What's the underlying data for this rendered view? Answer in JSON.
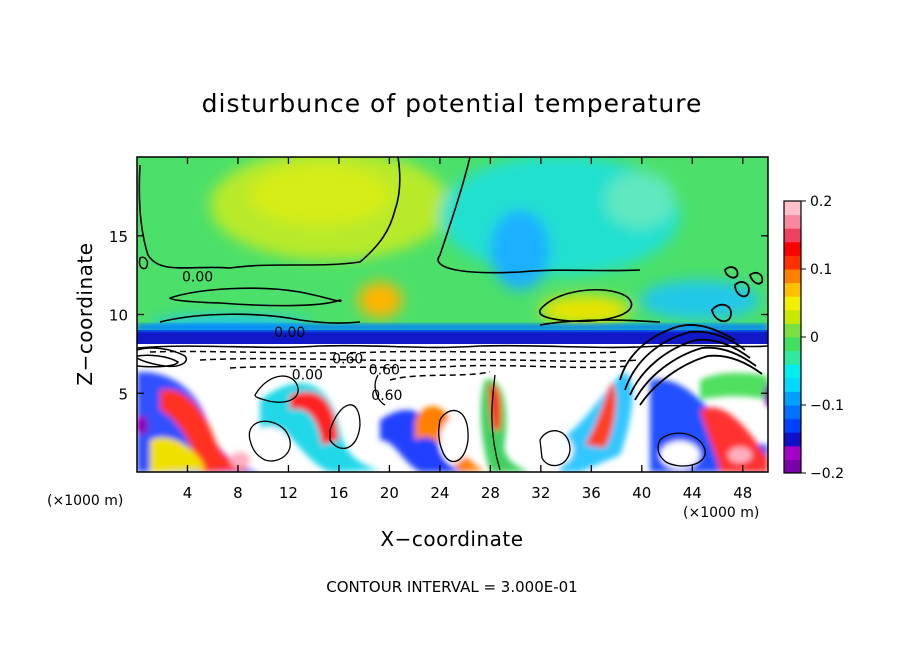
{
  "chart_data": {
    "type": "heatmap",
    "title": "disturbunce of potential temperature",
    "xlabel": "X−coordinate",
    "ylabel": "Z−coordinate",
    "x_unit_left": "(×1000 m)",
    "x_unit_right": "(×1000 m)",
    "footer": "CONTOUR INTERVAL = 3.000E-01",
    "xlim": [
      0,
      50
    ],
    "ylim": [
      0,
      20
    ],
    "x_ticks": [
      4,
      8,
      12,
      16,
      20,
      24,
      28,
      32,
      36,
      40,
      44,
      48
    ],
    "x_tick_labels": [
      "4",
      "8",
      "12",
      "16",
      "20",
      "24",
      "28",
      "32",
      "36",
      "40",
      "44",
      "48"
    ],
    "y_ticks": [
      5,
      10,
      15
    ],
    "y_tick_labels": [
      "5",
      "10",
      "15"
    ],
    "colorbar": {
      "range": [
        -0.2,
        0.2
      ],
      "ticks": [
        0.2,
        0.1,
        0,
        -0.1,
        -0.2
      ],
      "tick_labels": [
        "0.2",
        "0.1",
        "0",
        "−0.1",
        "−0.2"
      ],
      "colors": [
        "#7a00a8",
        "#a400c8",
        "#1010c8",
        "#0040ff",
        "#0070ff",
        "#00a0ff",
        "#00d8ff",
        "#00eeee",
        "#30e8a0",
        "#40e060",
        "#78e040",
        "#c8e800",
        "#f0f000",
        "#ffc000",
        "#ff8000",
        "#ff3000",
        "#ff0000",
        "#f04060",
        "#f888a0",
        "#ffc0c8"
      ]
    },
    "contour_labels": [
      {
        "text": "0.00",
        "x": 4.8,
        "z": 12.4
      },
      {
        "text": "0.00",
        "x": 12.1,
        "z": 8.9
      },
      {
        "text": "0.00",
        "x": 13.5,
        "z": 6.2
      },
      {
        "text": "0.60",
        "x": 16.7,
        "z": 7.2
      },
      {
        "text": "0.60",
        "x": 19.6,
        "z": 6.5
      },
      {
        "text": "0.60",
        "x": 19.8,
        "z": 4.9
      }
    ]
  }
}
